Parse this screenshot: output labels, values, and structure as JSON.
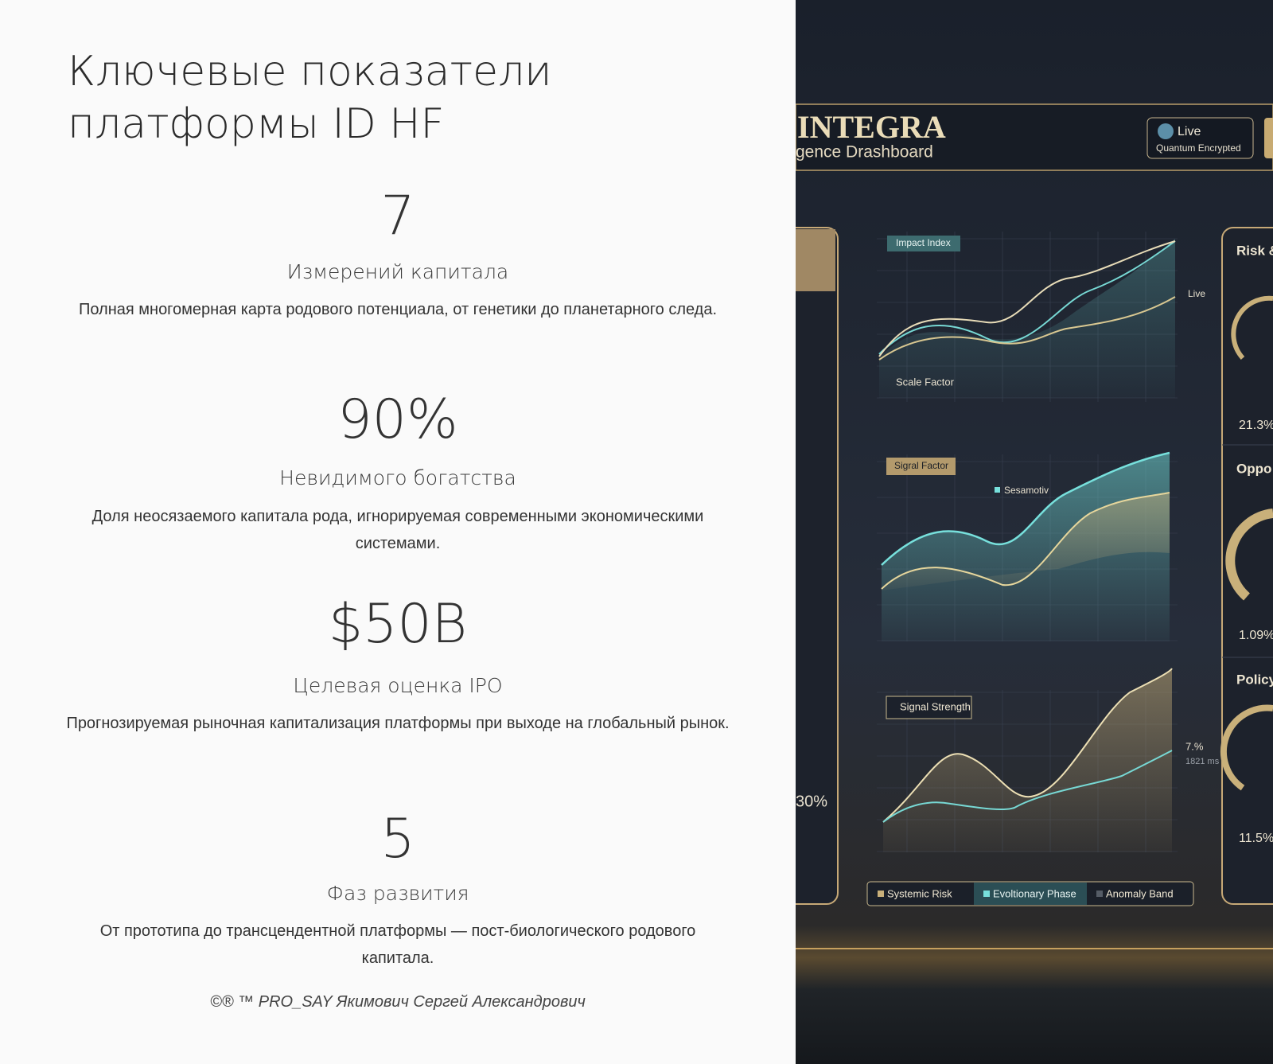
{
  "header": {
    "title_lines": [
      "Ключевые показатели",
      "платформы ID HF"
    ]
  },
  "metrics": [
    {
      "value": "7",
      "label": "Измерений капитала",
      "description": "Полная многомерная карта родового потенциала, от генетики до планетарного следа."
    },
    {
      "value": "90%",
      "label": "Невидимого богатства",
      "description": "Доля неосязаемого капитала рода, игнорируемая современными экономическими системами."
    },
    {
      "value": "$50B",
      "label": "Целевая оценка IPO",
      "description": "Прогнозируемая рыночная капитализация платформы при выходе на глобальный рынок."
    },
    {
      "value": "5",
      "label": "Фаз развития",
      "description": "От прототипа до трансцендентной платформы — пост-биологического родового капитала."
    }
  ],
  "footer": "©® ™ PRO_SAY Якимович Сергей Александрович",
  "dashboard": {
    "brand": "INTEGRA",
    "subtitle": "gence Drashboard",
    "badge": {
      "title": "Live",
      "subtitle": "Quantum Encrypted"
    },
    "charts": [
      {
        "label": "Impact Index",
        "sub_label": "Scale Factor",
        "note": "Live"
      },
      {
        "label": "Sigral Factor",
        "note": "Sesamotiv"
      },
      {
        "label": "Signal Strength",
        "note": "7.%",
        "sub_note": "1821 ms"
      }
    ],
    "legend": [
      "Systemic Risk",
      "Evoltionary Phase",
      "Anomaly Band"
    ],
    "side_panels": [
      {
        "title": "Risk &",
        "value": "21.3%"
      },
      {
        "title": "Oppo",
        "value": "1.09%"
      },
      {
        "title": "Policy",
        "value": "11.5%"
      }
    ],
    "left_value": "30%"
  }
}
